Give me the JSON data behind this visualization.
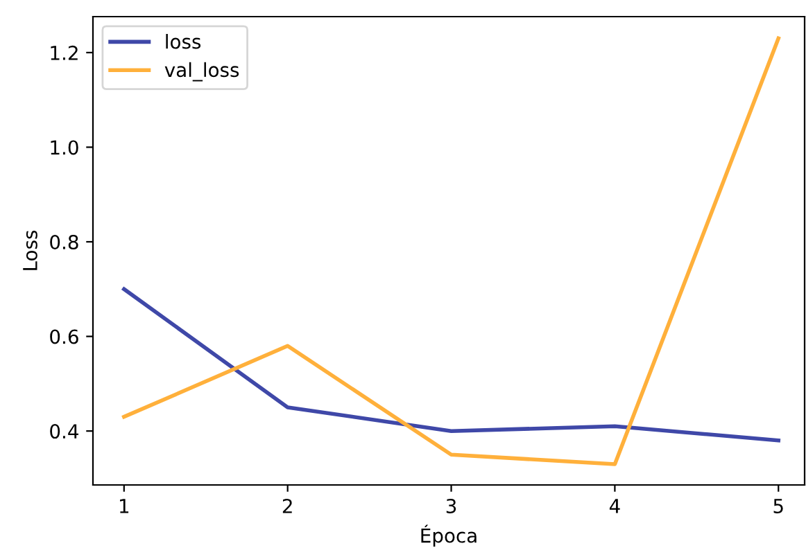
{
  "chart_data": {
    "type": "line",
    "xlabel": "Época",
    "ylabel": "Loss",
    "x": [
      1,
      2,
      3,
      4,
      5
    ],
    "series": [
      {
        "name": "loss",
        "color": "#3f48a8",
        "values": [
          0.7,
          0.45,
          0.4,
          0.41,
          0.38
        ]
      },
      {
        "name": "val_loss",
        "color": "#ffb03b",
        "values": [
          0.43,
          0.58,
          0.35,
          0.33,
          1.23
        ]
      }
    ],
    "xlim": [
      0.81,
      5.16
    ],
    "ylim": [
      0.286,
      1.276
    ],
    "xticks": [
      1,
      2,
      3,
      4,
      5
    ],
    "yticks": [
      0.4,
      0.6,
      0.8,
      {
        "value": 1,
        "label": "1.0"
      },
      1.2
    ],
    "legend": "top left",
    "grid": false
  }
}
